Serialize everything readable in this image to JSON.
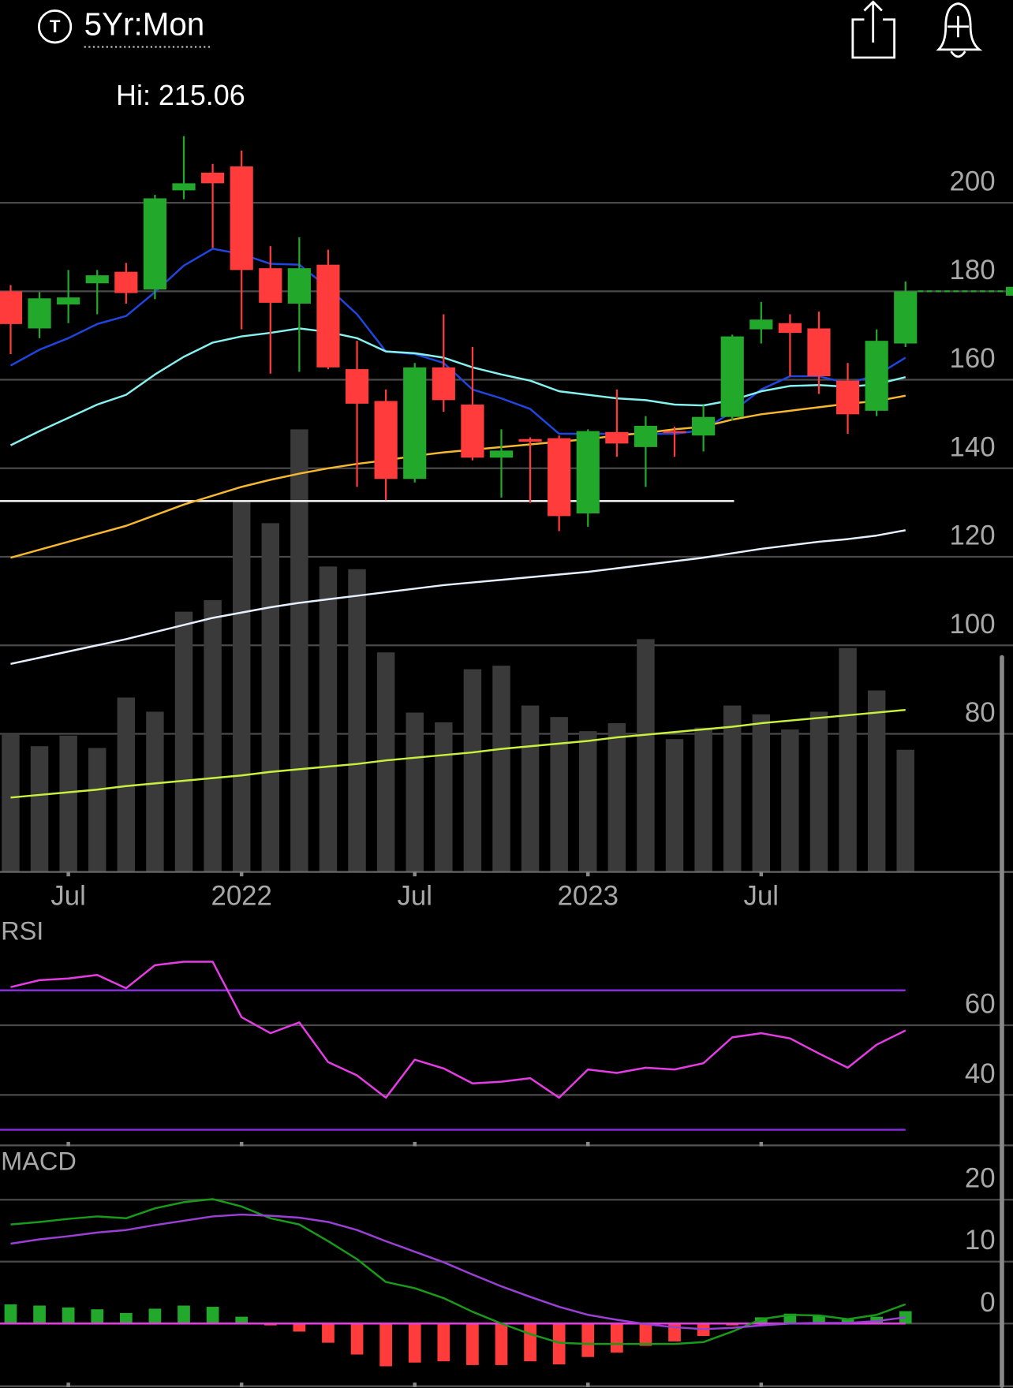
{
  "header": {
    "icon_letter": "T",
    "period": "5Yr:Mon"
  },
  "chart_data": [
    {
      "type": "candlestick",
      "high_label": "Hi: 215.06",
      "categories": [
        null,
        null,
        "Jul",
        null,
        null,
        null,
        null,
        null,
        "2022",
        null,
        null,
        null,
        null,
        null,
        "Jul",
        null,
        null,
        null,
        null,
        null,
        "2023",
        null,
        null,
        null,
        null,
        null,
        "Jul",
        null,
        null,
        null,
        null,
        null
      ],
      "open": [
        180,
        171.6,
        177,
        181.8,
        184.4,
        180.4,
        202.8,
        206.8,
        208.2,
        185.2,
        177.2,
        186,
        162.4,
        155.2,
        137.6,
        162.8,
        154.4,
        142.4,
        146.6,
        146.8,
        129.8,
        148.2,
        144.8,
        148.4,
        147.4,
        151.6,
        171.4,
        172.8,
        171.6,
        159.8,
        153,
        168.2
      ],
      "high": [
        181.4,
        179.8,
        184.8,
        184.8,
        186.4,
        201.8,
        215.06,
        208.8,
        211.8,
        190.2,
        192.2,
        189.4,
        168.8,
        157.8,
        163.8,
        174.8,
        167.4,
        148.8,
        147,
        147.4,
        148.8,
        157.8,
        151.8,
        149.4,
        154.2,
        170.2,
        177.6,
        174.8,
        175.4,
        163.8,
        171.4,
        182.2
      ],
      "low": [
        165.8,
        169.4,
        172.8,
        174.8,
        177.2,
        178.2,
        200.8,
        189.8,
        171.4,
        161.4,
        161.8,
        162.4,
        135.8,
        132.8,
        136.8,
        152.8,
        141.8,
        133.4,
        132.2,
        125.8,
        126.8,
        142.6,
        135.8,
        142.6,
        143.8,
        150.8,
        168.2,
        160.8,
        156.8,
        147.8,
        151.8,
        167.4
      ],
      "close": [
        172.6,
        178.4,
        178.6,
        183.6,
        179.6,
        201,
        204.4,
        204.4,
        184.8,
        177.4,
        185.2,
        162.8,
        154.6,
        137.6,
        162.8,
        155.4,
        142.4,
        144,
        146,
        129.2,
        148.4,
        145.6,
        149.6,
        148,
        151.6,
        169.8,
        173.6,
        170.6,
        160.8,
        152.2,
        168.8,
        180
      ],
      "up_color": "#22a82a",
      "down_color": "#ff3b3b",
      "ylim": [
        49,
        217
      ],
      "yticks": [
        80,
        100,
        120,
        140,
        160,
        180,
        200
      ],
      "grid": true,
      "last_price_line": true,
      "series": [
        {
          "color": "#2146e0",
          "values": [
            163.2,
            166.8,
            169.4,
            172.6,
            174.4,
            179.8,
            185.8,
            189.6,
            188.4,
            186.2,
            186,
            180.8,
            174.8,
            166.4,
            165.8,
            163.8,
            157.8,
            155.8,
            153.4,
            147.8,
            147.8,
            147.8,
            147.8,
            147.8,
            148.6,
            152.8,
            157.8,
            160.8,
            160.8,
            159.2,
            161,
            165
          ]
        },
        {
          "color": "#86f2f0",
          "values": [
            145.2,
            148.4,
            151.4,
            154.4,
            156.6,
            161.2,
            165.2,
            168.4,
            169.8,
            170.6,
            171.6,
            170.8,
            169.4,
            166.4,
            166,
            165,
            162.8,
            161.2,
            159.8,
            157.4,
            156.6,
            155.8,
            155.4,
            154.4,
            154.2,
            155.4,
            157.4,
            158.6,
            158.8,
            158.4,
            159,
            160.6
          ]
        },
        {
          "color": "#f5b82e",
          "values": [
            119.8,
            121.6,
            123.4,
            125.2,
            127,
            129.4,
            131.8,
            133.8,
            135.8,
            137.4,
            138.8,
            140,
            141,
            141.8,
            142.8,
            143.6,
            144.2,
            144.8,
            145.4,
            146,
            146.6,
            147.4,
            148,
            148.8,
            149.4,
            151,
            152.2,
            153,
            153.8,
            154.6,
            155.2,
            156.4
          ]
        },
        {
          "color": "#e6f0ff",
          "values": [
            95.8,
            97.2,
            98.6,
            100,
            101.4,
            103,
            104.6,
            106.2,
            107.4,
            108.6,
            109.6,
            110.4,
            111.2,
            112,
            112.8,
            113.6,
            114.2,
            114.8,
            115.4,
            116,
            116.6,
            117.4,
            118.2,
            119,
            119.8,
            120.8,
            121.8,
            122.6,
            123.4,
            124,
            124.8,
            126
          ]
        }
      ],
      "hlines": [
        {
          "value": 132.6,
          "color": "#ffffff"
        }
      ],
      "volume": {
        "color": "#3a3a3a",
        "ylim": [
          0,
          600
        ],
        "values": [
          156,
          142,
          154,
          140,
          197,
          181,
          294,
          307,
          418,
          394,
          500,
          345,
          342,
          248,
          180,
          169,
          229,
          233,
          188,
          175,
          159,
          168,
          263,
          150,
          163,
          188,
          178,
          161,
          181,
          253,
          205,
          138
        ],
        "ma": {
          "color": "#c8f03c",
          "values": [
            84,
            87,
            90,
            93,
            97,
            100,
            103,
            106,
            109,
            113,
            116,
            119,
            122,
            126,
            129,
            132,
            135,
            139,
            142,
            145,
            148,
            152,
            155,
            158,
            161,
            164,
            168,
            171,
            174,
            177,
            180,
            183
          ]
        }
      }
    },
    {
      "type": "line",
      "title": "RSI",
      "ylim": [
        25,
        90
      ],
      "yticks": [
        40,
        60
      ],
      "grid": true,
      "hlines": [
        {
          "value": 70,
          "color": "#8a2be2"
        },
        {
          "value": 30,
          "color": "#8a2be2"
        }
      ],
      "series": [
        {
          "color": "#e63ce6",
          "values": [
            70.9,
            72.9,
            73.4,
            74.4,
            70.6,
            77.2,
            78.2,
            78.2,
            62.3,
            57.7,
            60.8,
            49.4,
            45.6,
            39.2,
            50.1,
            47.6,
            43.3,
            43.8,
            44.8,
            39.2,
            47.3,
            46.3,
            47.8,
            47.3,
            49.1,
            56.5,
            57.7,
            56.2,
            51.9,
            47.8,
            54.4,
            58.5
          ]
        }
      ]
    },
    {
      "type": "line",
      "title": "MACD",
      "ylim": [
        -10.4,
        27.9
      ],
      "yticks": [
        0,
        10,
        20
      ],
      "grid": true,
      "hlines": [
        {
          "value": 0,
          "color": "#e63ce6"
        }
      ],
      "histogram": {
        "up_color": "#22a82a",
        "down_color": "#ff3b3b",
        "values": [
          3.1,
          2.9,
          2.6,
          2.3,
          1.7,
          2.4,
          2.9,
          2.7,
          1.1,
          -0.3,
          -1.3,
          -3.1,
          -5,
          -6.9,
          -6.3,
          -6.1,
          -6.7,
          -6.7,
          -6.1,
          -6.6,
          -5.4,
          -4.7,
          -3.6,
          -2.9,
          -2,
          -0.3,
          1,
          1.6,
          1.3,
          0.7,
          1.1,
          2
        ]
      },
      "series": [
        {
          "color": "#1a9a1a",
          "values": [
            16,
            16.4,
            16.9,
            17.3,
            17,
            18.6,
            19.6,
            20.1,
            18.9,
            17,
            16,
            13.3,
            10.4,
            6.7,
            5.7,
            4.1,
            1.9,
            0,
            -1.7,
            -3.1,
            -3.3,
            -3.3,
            -3.3,
            -3.3,
            -3,
            -1.3,
            0.7,
            1.4,
            1.3,
            0.7,
            1.4,
            3.1
          ]
        },
        {
          "color": "#9b3fd6",
          "values": [
            12.9,
            13.6,
            14.1,
            14.7,
            15.1,
            15.9,
            16.6,
            17.3,
            17.6,
            17.4,
            17.1,
            16.4,
            15.1,
            13.3,
            11.6,
            9.9,
            7.9,
            6,
            4.3,
            2.7,
            1.4,
            0.6,
            -0.1,
            -0.6,
            -0.9,
            -0.7,
            -0.3,
            0,
            0.1,
            0.1,
            0.4,
            1
          ]
        }
      ]
    }
  ]
}
